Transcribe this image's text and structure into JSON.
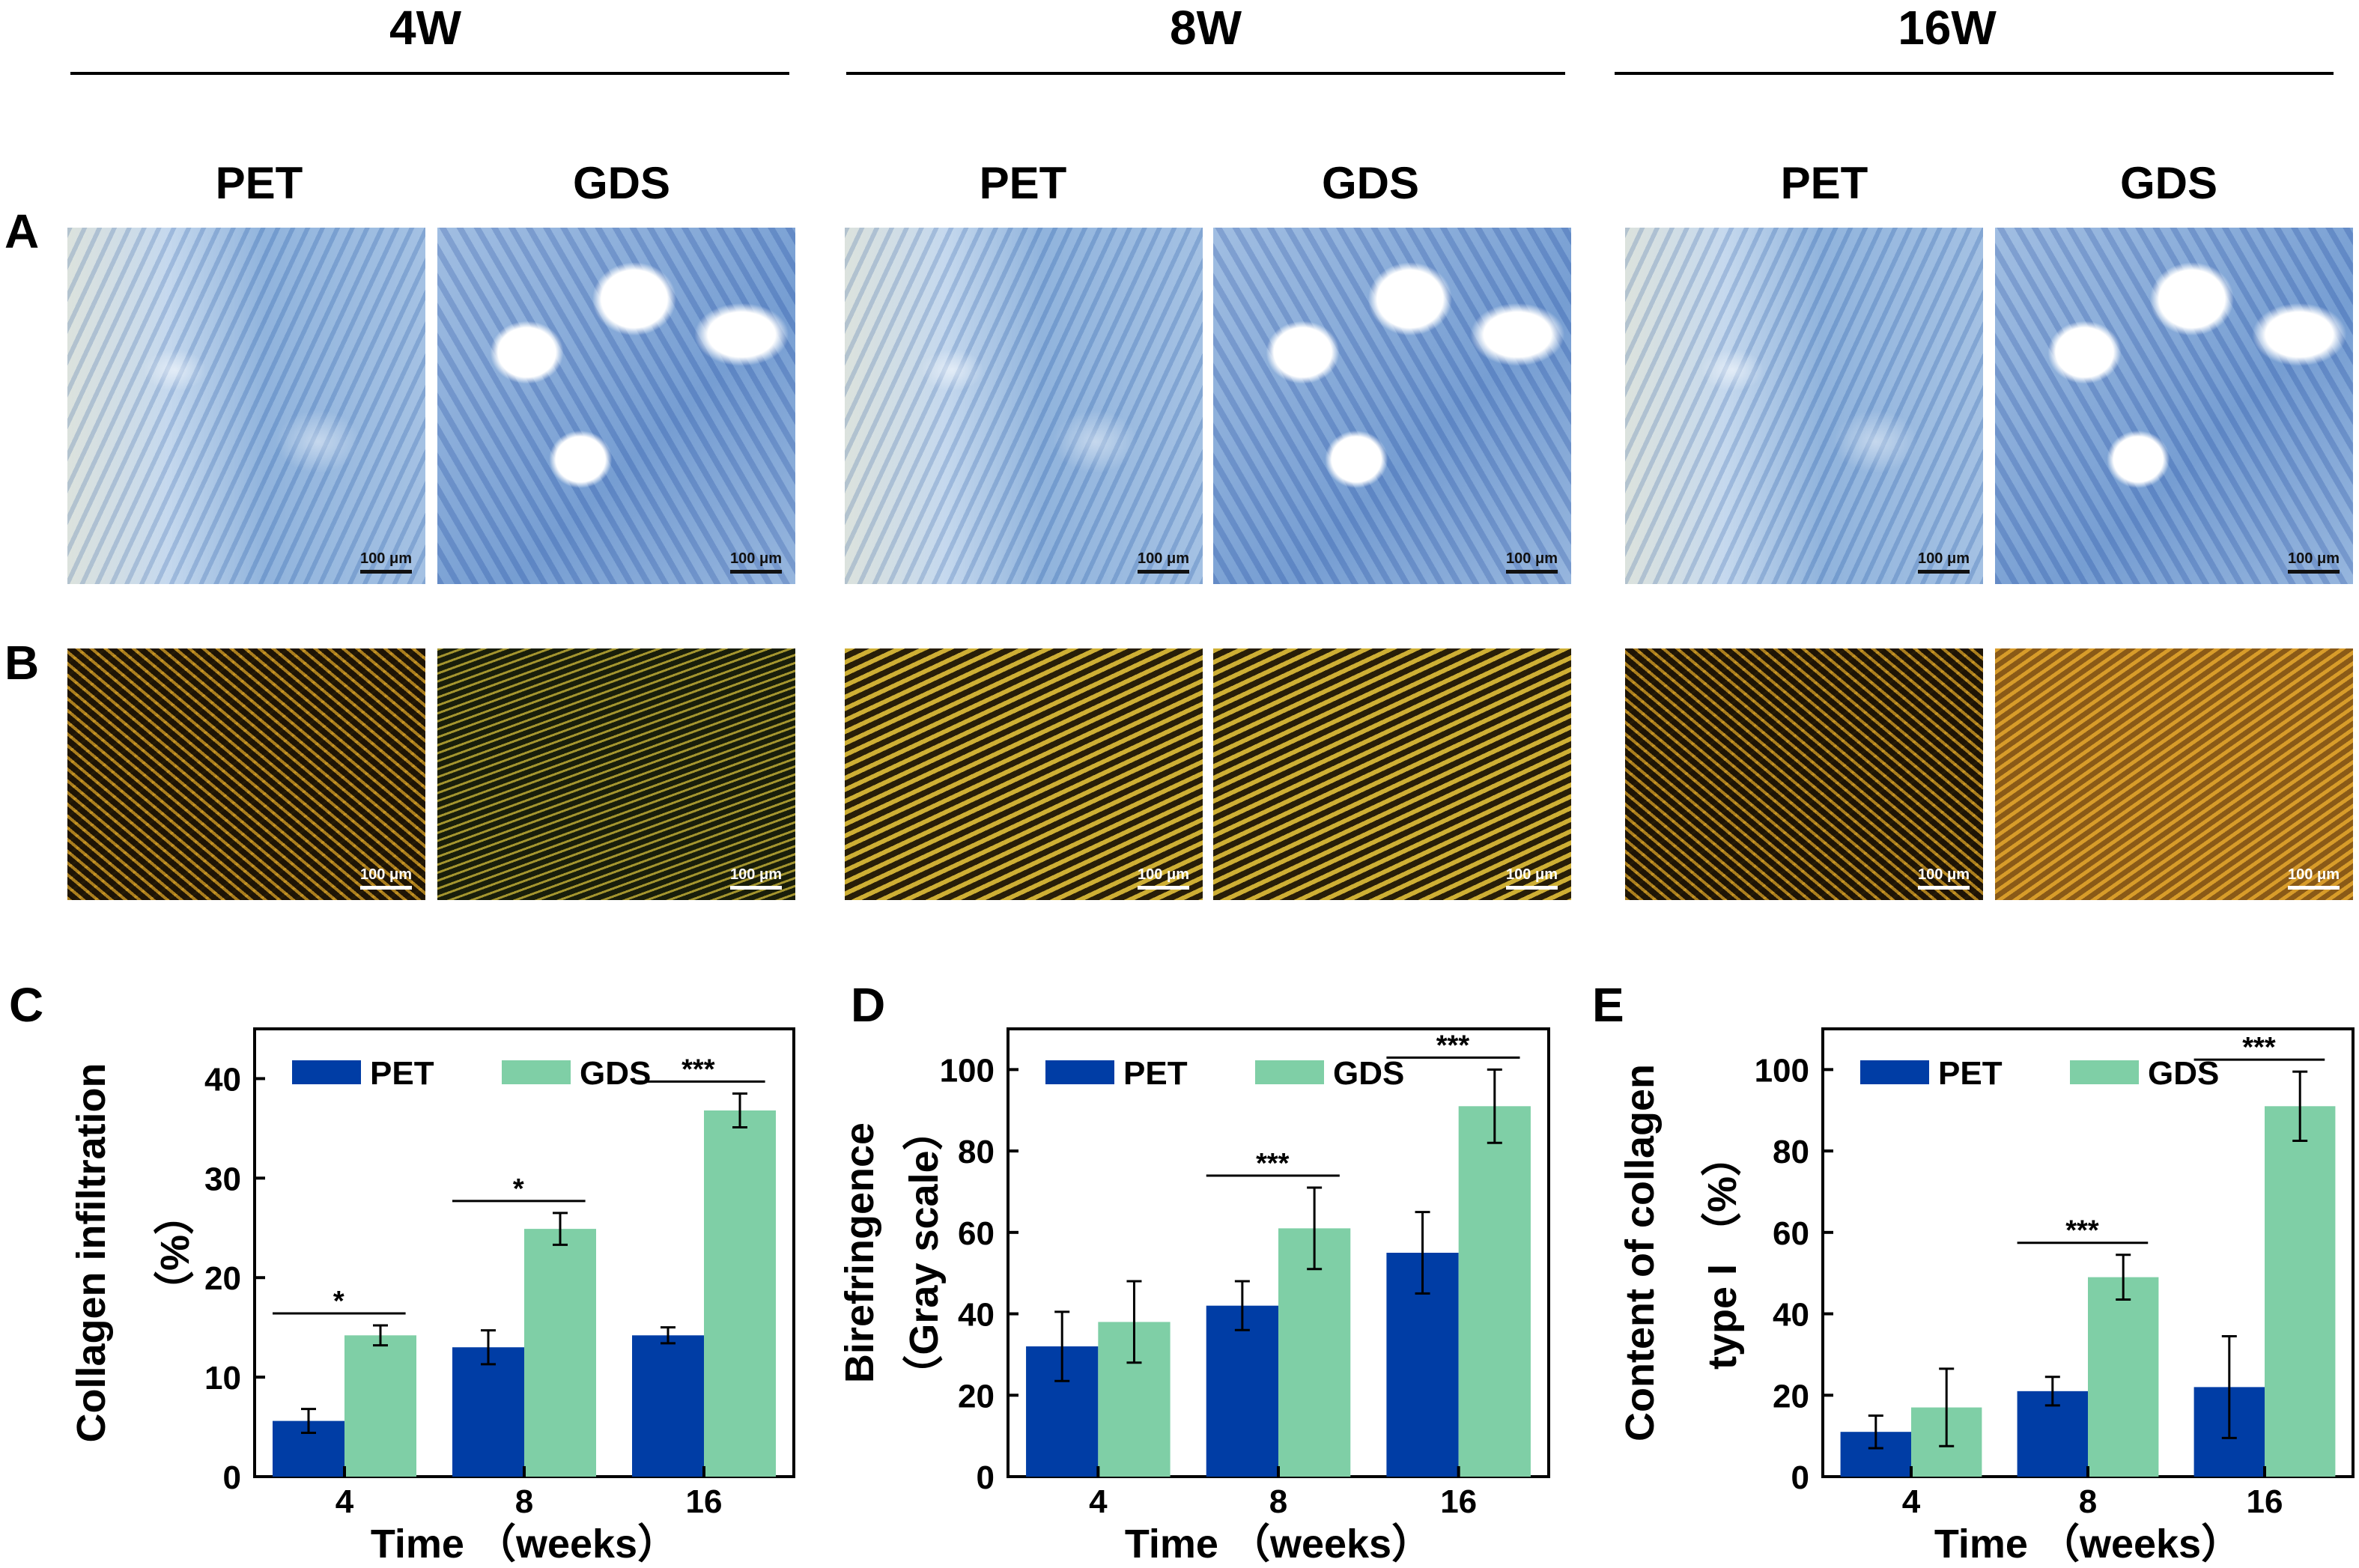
{
  "columns": [
    {
      "title": "4W",
      "groups": [
        "PET",
        "GDS"
      ]
    },
    {
      "title": "8W",
      "groups": [
        "PET",
        "GDS"
      ]
    },
    {
      "title": "16W",
      "groups": [
        "PET",
        "GDS"
      ]
    }
  ],
  "row_labels": {
    "A": "A",
    "B": "B"
  },
  "scale_bar": "100 μm",
  "colors": {
    "pet": "#003da5",
    "gds": "#7fcfa6"
  },
  "chart_data": [
    {
      "type": "bar",
      "panel": "C",
      "categories": [
        "4",
        "8",
        "16"
      ],
      "series": [
        {
          "name": "PET",
          "values": [
            5.6,
            13.0,
            14.2
          ],
          "errors": [
            1.2,
            1.7,
            0.8
          ]
        },
        {
          "name": "GDS",
          "values": [
            14.2,
            24.9,
            36.8
          ],
          "errors": [
            1.0,
            1.6,
            1.7
          ]
        }
      ],
      "xlabel": "Time （weeks）",
      "ylabel": "Collagen infiltration",
      "ylabel2": "（%）",
      "ylim": [
        0,
        45
      ],
      "yticks": [
        0,
        10,
        20,
        30,
        40
      ],
      "significance": [
        {
          "category": "4",
          "label": "*"
        },
        {
          "category": "8",
          "label": "*"
        },
        {
          "category": "16",
          "label": "***"
        }
      ],
      "legend": "top-left"
    },
    {
      "type": "bar",
      "panel": "D",
      "categories": [
        "4",
        "8",
        "16"
      ],
      "series": [
        {
          "name": "PET",
          "values": [
            32.0,
            42.0,
            55.0
          ],
          "errors": [
            8.5,
            6.0,
            10.0
          ]
        },
        {
          "name": "GDS",
          "values": [
            38.0,
            61.0,
            91.0
          ],
          "errors": [
            10.0,
            10.0,
            9.0
          ]
        }
      ],
      "xlabel": "Time （weeks）",
      "ylabel": "Birefringence",
      "ylabel2": "（Gray scale）",
      "ylim": [
        0,
        110
      ],
      "yticks": [
        0,
        20,
        40,
        60,
        80,
        100
      ],
      "significance": [
        {
          "category": "8",
          "label": "***"
        },
        {
          "category": "16",
          "label": "***"
        }
      ],
      "legend": "top-left"
    },
    {
      "type": "bar",
      "panel": "E",
      "categories": [
        "4",
        "8",
        "16"
      ],
      "series": [
        {
          "name": "PET",
          "values": [
            11.0,
            21.0,
            22.0
          ],
          "errors": [
            4.0,
            3.5,
            12.5
          ]
        },
        {
          "name": "GDS",
          "values": [
            17.0,
            49.0,
            91.0
          ],
          "errors": [
            9.5,
            5.5,
            8.5
          ]
        }
      ],
      "xlabel": "Time （weeks）",
      "ylabel": "Content of collagen",
      "ylabel2": "type I （%）",
      "ylim": [
        0,
        110
      ],
      "yticks": [
        0,
        20,
        40,
        60,
        80,
        100
      ],
      "significance": [
        {
          "category": "8",
          "label": "***"
        },
        {
          "category": "16",
          "label": "***"
        }
      ],
      "legend": "top-left"
    }
  ]
}
